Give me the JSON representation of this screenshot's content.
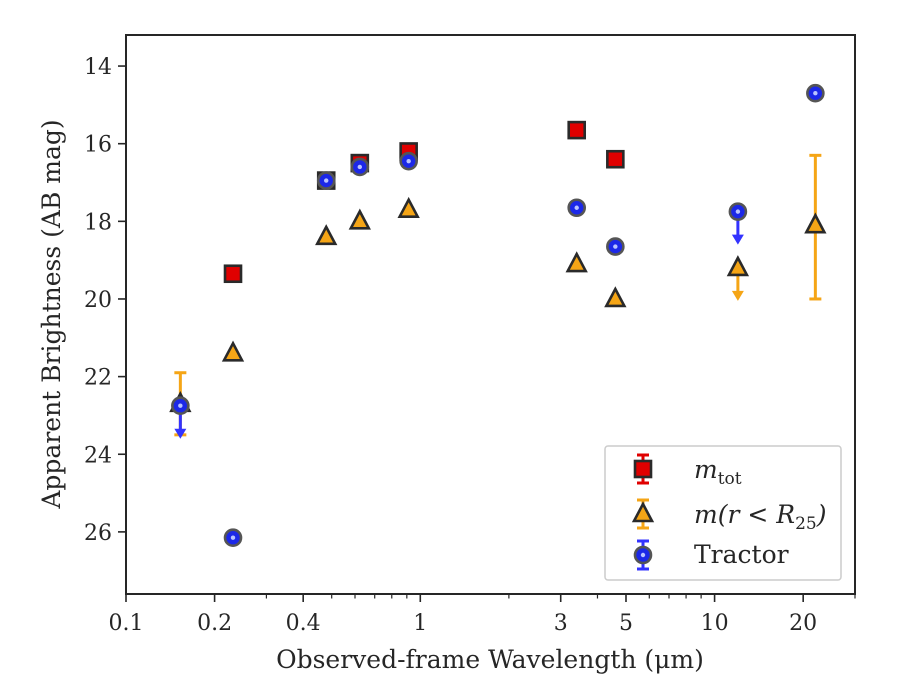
{
  "chart_data": {
    "type": "scatter",
    "xlabel": "Observed-frame Wavelength (μm)",
    "ylabel": "Apparent Brightness (AB mag)",
    "xscale": "log",
    "xlim": [
      0.1,
      30
    ],
    "ylim": [
      27.6,
      13.2
    ],
    "y_inverted": true,
    "grid": false,
    "legend_position": "lower right",
    "x_tick_labels": [
      "0.1",
      "0.2",
      "0.4",
      "1",
      "3",
      "5",
      "10",
      "20"
    ],
    "x_tick_values": [
      0.1,
      0.2,
      0.4,
      1,
      3,
      5,
      10,
      20
    ],
    "y_tick_labels": [
      "14",
      "16",
      "18",
      "20",
      "22",
      "24",
      "26"
    ],
    "y_tick_values": [
      14,
      16,
      18,
      20,
      22,
      24,
      26
    ],
    "series": [
      {
        "name": "m_tot",
        "legend_label": "mtot",
        "marker": "square",
        "color": "#e00000",
        "errcolor": "#e00000",
        "points": [
          {
            "x": 0.231,
            "y": 19.35
          },
          {
            "x": 0.479,
            "y": 16.95
          },
          {
            "x": 0.623,
            "y": 16.5
          },
          {
            "x": 0.913,
            "y": 16.2
          },
          {
            "x": 3.4,
            "y": 15.65
          },
          {
            "x": 4.6,
            "y": 16.4
          }
        ]
      },
      {
        "name": "m(r<R25)",
        "legend_label": "m(r < R25)",
        "marker": "triangle",
        "color": "#f5a516",
        "errcolor": "#f5a516",
        "points": [
          {
            "x": 0.153,
            "y": 22.7,
            "err_low": 0.8,
            "err_high": 0.8
          },
          {
            "x": 0.231,
            "y": 21.4
          },
          {
            "x": 0.479,
            "y": 18.4
          },
          {
            "x": 0.623,
            "y": 18.0
          },
          {
            "x": 0.913,
            "y": 17.7
          },
          {
            "x": 3.4,
            "y": 19.1
          },
          {
            "x": 4.6,
            "y": 20.0
          },
          {
            "x": 12.0,
            "y": 19.2,
            "upper_limit": true
          },
          {
            "x": 22.0,
            "y": 18.1,
            "err_low": 1.8,
            "err_high": 1.9
          }
        ]
      },
      {
        "name": "Tractor",
        "legend_label": "Tractor",
        "marker": "circle",
        "color": "#1c28e8",
        "errcolor": "#3333ff",
        "points": [
          {
            "x": 0.153,
            "y": 22.75,
            "upper_limit": true
          },
          {
            "x": 0.231,
            "y": 26.15
          },
          {
            "x": 0.479,
            "y": 16.95
          },
          {
            "x": 0.623,
            "y": 16.6
          },
          {
            "x": 0.913,
            "y": 16.45
          },
          {
            "x": 3.4,
            "y": 17.65
          },
          {
            "x": 4.6,
            "y": 18.65
          },
          {
            "x": 12.0,
            "y": 17.75,
            "upper_limit": true
          },
          {
            "x": 22.0,
            "y": 14.7
          }
        ]
      }
    ]
  },
  "legend": {
    "m_tot_main": "m",
    "m_tot_sub": "tot",
    "m_r_main": "m(r < R",
    "m_r_sub": "25",
    "m_r_close": ")",
    "tractor": "Tractor"
  }
}
